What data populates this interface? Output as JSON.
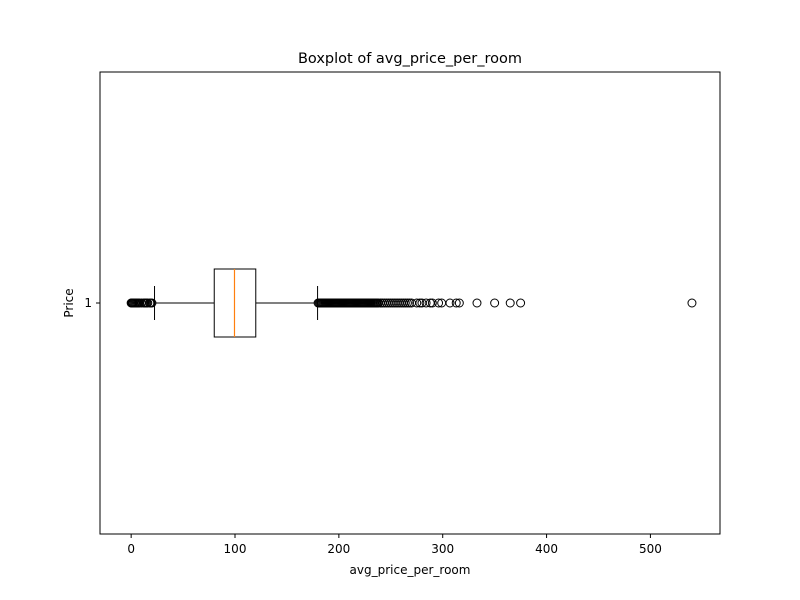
{
  "chart_data": {
    "type": "boxplot",
    "orientation": "horizontal",
    "title": "Boxplot of avg_price_per_room",
    "xlabel": "avg_price_per_room",
    "ylabel": "Price",
    "xlim": [
      -30,
      567
    ],
    "x_ticks": [
      0,
      100,
      200,
      300,
      400,
      500
    ],
    "y_ticks": [
      "1"
    ],
    "grid": false,
    "colors": {
      "box": "#000000",
      "median": "#ff7f0e",
      "outlier": "#000000"
    },
    "box": {
      "category": "1",
      "whisker_low": 22.5,
      "q1": 80,
      "median": 99.5,
      "q3": 120,
      "whisker_high": 179.5
    },
    "outliers": [
      0,
      0.5,
      1,
      1.5,
      2,
      3,
      4,
      5,
      6,
      7,
      8,
      10,
      12,
      13,
      14,
      15,
      16,
      18,
      19,
      20,
      180,
      181,
      182,
      183,
      184,
      185,
      186,
      187,
      188,
      189,
      190,
      191,
      192,
      193,
      194,
      195,
      196,
      197,
      198,
      199,
      200,
      201,
      202,
      203,
      204,
      205,
      206,
      207,
      208,
      209,
      210,
      211,
      212,
      213,
      214,
      215,
      216,
      217,
      218,
      219,
      220,
      221,
      222,
      223,
      224,
      225,
      226,
      227,
      228,
      229,
      230,
      231,
      232,
      233,
      234,
      235,
      236,
      237,
      238,
      240,
      242,
      244,
      246,
      248,
      250,
      252,
      254,
      256,
      258,
      260,
      262,
      264,
      266,
      268,
      270,
      275,
      278,
      280,
      284,
      288,
      290,
      296,
      299,
      307,
      313,
      316,
      333,
      350,
      365,
      375,
      540
    ]
  }
}
